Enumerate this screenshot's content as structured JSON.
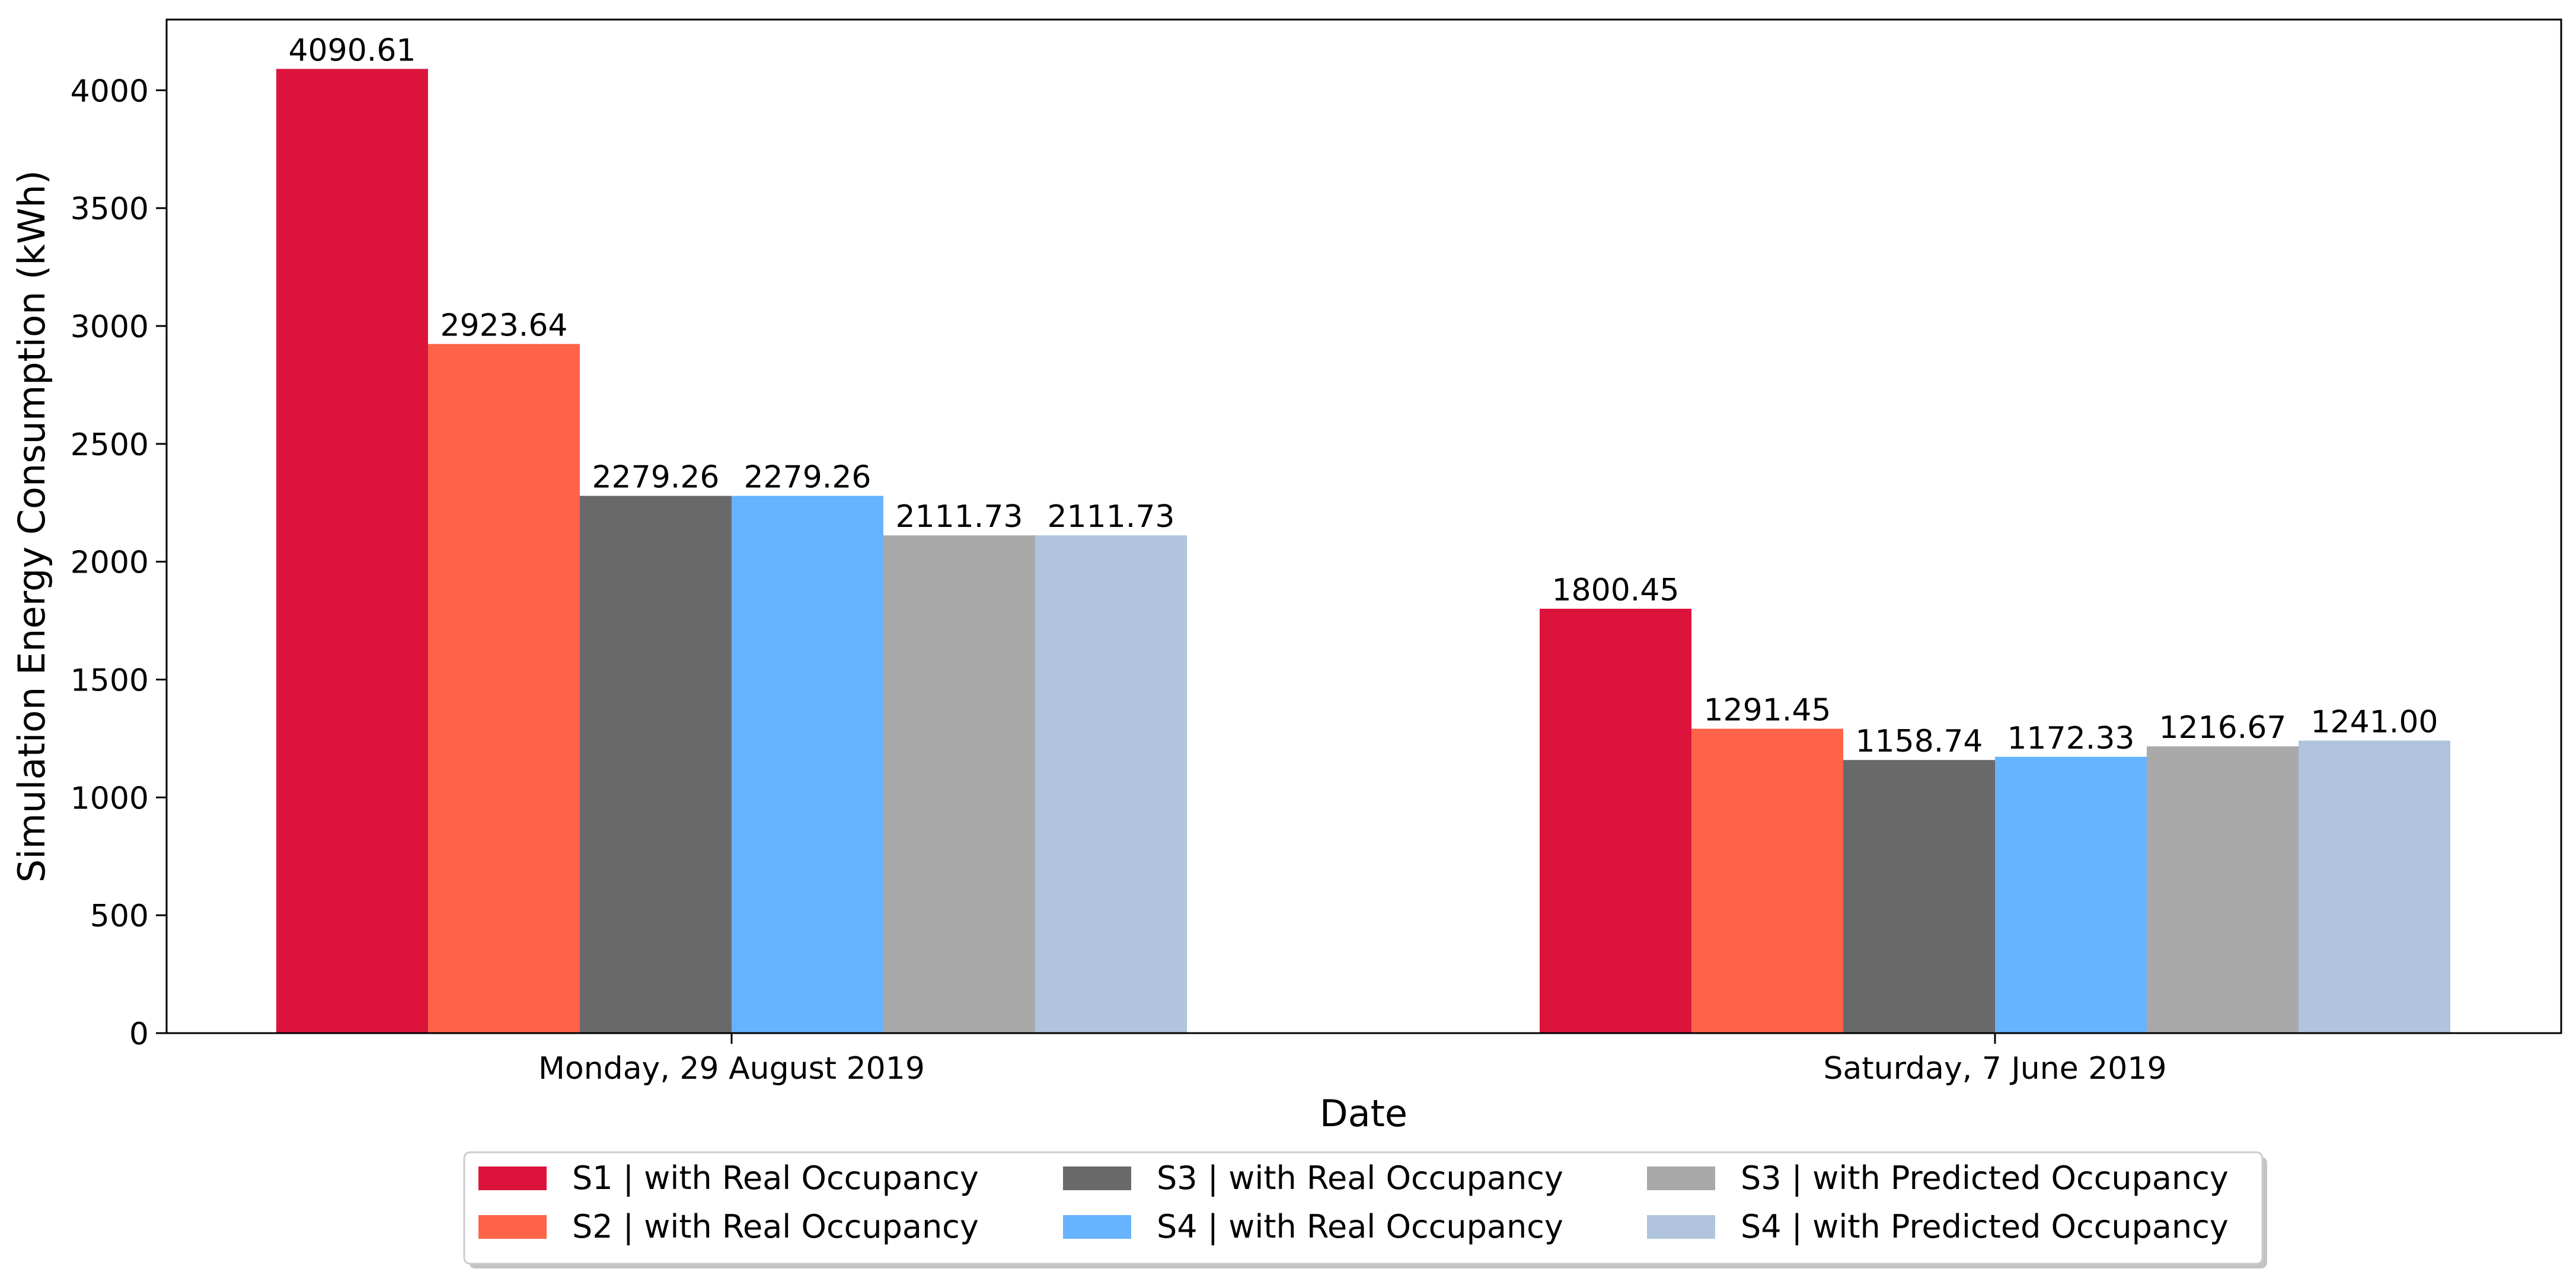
{
  "chart_data": {
    "type": "bar",
    "title": "",
    "xlabel": "Date",
    "ylabel": "Simulation Energy Consumption (kWh)",
    "ylim": [
      0,
      4300
    ],
    "yticks": [
      0,
      500,
      1000,
      1500,
      2000,
      2500,
      3000,
      3500,
      4000
    ],
    "categories": [
      "Monday, 29 August 2019",
      "Saturday, 7 June 2019"
    ],
    "legend_position": "bottom-center",
    "series": [
      {
        "name": "S1 | with Real Occupancy",
        "color": "#DC143C",
        "values": [
          4090.61,
          1800.45
        ],
        "labels": [
          "4090.61",
          "1800.45"
        ]
      },
      {
        "name": "S2 | with Real Occupancy",
        "color": "#FF6347",
        "values": [
          2923.64,
          1291.45
        ],
        "labels": [
          "2923.64",
          "1291.45"
        ]
      },
      {
        "name": "S3 | with Real Occupancy",
        "color": "#696969",
        "values": [
          2279.26,
          1158.74
        ],
        "labels": [
          "2279.26",
          "1158.74"
        ]
      },
      {
        "name": "S4 | with Real Occupancy",
        "color": "#66B3FF",
        "values": [
          2279.26,
          1172.33
        ],
        "labels": [
          "2279.26",
          "1172.33"
        ]
      },
      {
        "name": "S3 | with Predicted Occupancy",
        "color": "#A9A9A9",
        "values": [
          2111.73,
          1216.67
        ],
        "labels": [
          "2111.73",
          "1216.67"
        ]
      },
      {
        "name": "S4 | with Predicted Occupancy",
        "color": "#B0C4DE",
        "values": [
          2111.73,
          1241.0
        ],
        "labels": [
          "2111.73",
          "1241.00"
        ]
      }
    ]
  }
}
